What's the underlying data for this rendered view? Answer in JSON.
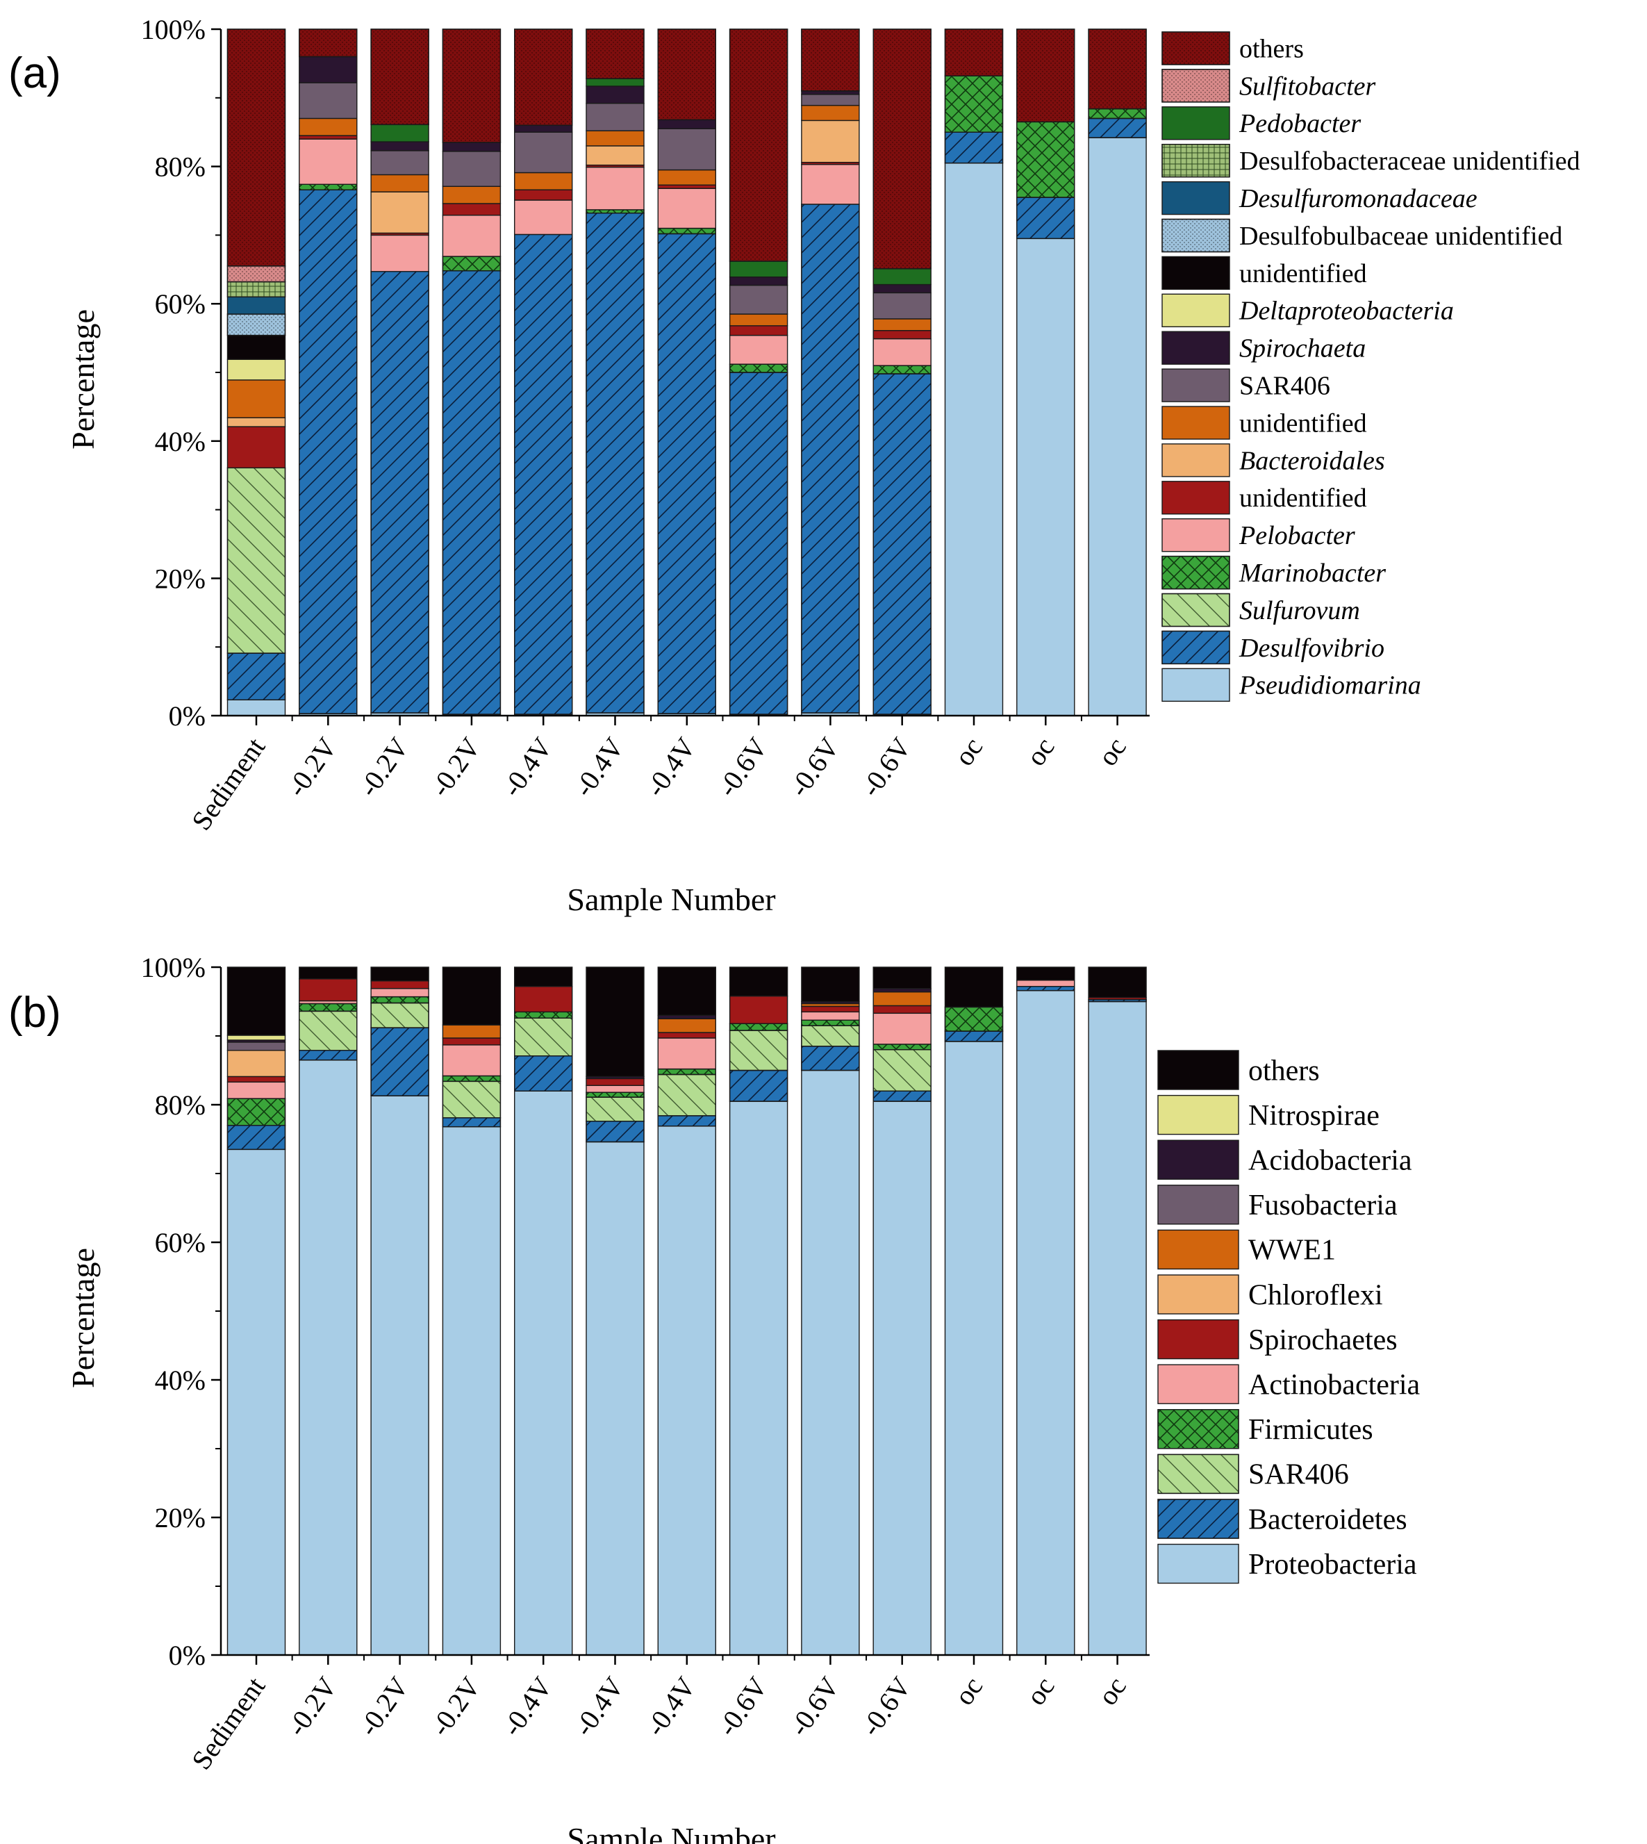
{
  "figure": {
    "panels": [
      {
        "label": "(a)"
      },
      {
        "label": "(b)"
      }
    ]
  },
  "chart_data": [
    {
      "type": "bar",
      "stacked": true,
      "panel": "(a)",
      "xlabel": "Sample Number",
      "ylabel": "Percentage",
      "ylim": [
        0,
        100
      ],
      "yticks": [
        "0%",
        "20%",
        "40%",
        "60%",
        "80%",
        "100%"
      ],
      "categories": [
        "Sediment",
        "-0.2V",
        "-0.2V",
        "-0.2V",
        "-0.4V",
        "-0.4V",
        "-0.4V",
        "-0.6V",
        "-0.6V",
        "-0.6V",
        "oc",
        "oc",
        "oc"
      ],
      "legend_position": "right",
      "series": [
        {
          "name": "Pseudidiomarina",
          "italic": true,
          "color": "#a8cde6",
          "pattern": "none",
          "values": [
            2.3,
            0.3,
            0.4,
            0.2,
            0.2,
            0.4,
            0.3,
            0.2,
            0.4,
            0.2,
            80.5,
            69.5,
            84.2
          ]
        },
        {
          "name": "Desulfovibrio",
          "italic": true,
          "color": "#2472b5",
          "pattern": "diag",
          "values": [
            6.8,
            76.3,
            64.3,
            64.6,
            69.9,
            72.8,
            69.9,
            49.8,
            74.1,
            49.6,
            4.5,
            6.0,
            2.8
          ]
        },
        {
          "name": "Sulfurovum",
          "italic": true,
          "color": "#b3dc91",
          "pattern": "diag-wide",
          "values": [
            27.0,
            0.0,
            0.0,
            0.0,
            0.0,
            0.0,
            0.0,
            0.0,
            0.0,
            0.0,
            0.0,
            0.0,
            0.0
          ]
        },
        {
          "name": "Marinobacter",
          "italic": true,
          "color": "#3aa53a",
          "pattern": "cross",
          "values": [
            0.0,
            0.8,
            0.0,
            2.1,
            0.0,
            0.5,
            0.8,
            1.2,
            0.0,
            1.2,
            8.2,
            11.0,
            1.4
          ]
        },
        {
          "name": "Pelobacter",
          "italic": true,
          "color": "#f4a0a0",
          "pattern": "none",
          "values": [
            0.0,
            6.6,
            5.3,
            6.0,
            5.0,
            6.2,
            5.8,
            4.2,
            5.8,
            3.9,
            0.0,
            0.0,
            0.0
          ]
        },
        {
          "name": "unidentified",
          "italic": false,
          "color": "#a01818",
          "pattern": "none",
          "values": [
            6.0,
            0.5,
            0.3,
            1.7,
            1.5,
            0.3,
            0.5,
            1.4,
            0.3,
            1.2,
            0.0,
            0.0,
            0.0
          ]
        },
        {
          "name": "Bacteroidales",
          "italic": true,
          "color": "#f0b070",
          "pattern": "none",
          "values": [
            1.3,
            0.0,
            6.0,
            0.0,
            0.0,
            2.8,
            0.0,
            0.0,
            6.1,
            0.0,
            0.0,
            0.0,
            0.0
          ]
        },
        {
          "name": "unidentified",
          "italic": false,
          "color": "#d2650d",
          "pattern": "none",
          "values": [
            5.5,
            2.5,
            2.5,
            2.5,
            2.5,
            2.2,
            2.2,
            1.7,
            2.2,
            1.7,
            0.0,
            0.0,
            0.0
          ]
        },
        {
          "name": "SAR406",
          "italic": false,
          "color": "#6e5c6e",
          "pattern": "none",
          "values": [
            0.0,
            5.2,
            3.5,
            5.1,
            5.9,
            4.0,
            6.0,
            4.2,
            1.6,
            3.8,
            0.0,
            0.0,
            0.0
          ]
        },
        {
          "name": "Spirochaeta",
          "italic": true,
          "color": "#2a1530",
          "pattern": "none",
          "values": [
            0.0,
            3.8,
            1.3,
            1.3,
            1.0,
            2.5,
            1.3,
            1.2,
            0.5,
            1.2,
            0.0,
            0.0,
            0.0
          ]
        },
        {
          "name": "Deltaproteobacteria",
          "italic": true,
          "color": "#e2e28a",
          "pattern": "none",
          "values": [
            3.0,
            0.0,
            0.0,
            0.0,
            0.0,
            0.0,
            0.0,
            0.0,
            0.0,
            0.0,
            0.0,
            0.0,
            0.0
          ]
        },
        {
          "name": "unidentified",
          "italic": false,
          "color": "#0b0507",
          "pattern": "none",
          "values": [
            3.5,
            0.0,
            0.0,
            0.0,
            0.0,
            0.0,
            0.0,
            0.0,
            0.0,
            0.0,
            0.0,
            0.0,
            0.0
          ]
        },
        {
          "name": "Desulfobulbaceae unidentified",
          "italic": false,
          "color": "#9ec2dc",
          "pattern": "dots-fine",
          "values": [
            3.1,
            0.0,
            0.0,
            0.0,
            0.0,
            0.0,
            0.0,
            0.0,
            0.0,
            0.0,
            0.0,
            0.0,
            0.0
          ]
        },
        {
          "name": "Desulfuromonadaceae",
          "italic": true,
          "color": "#15567e",
          "pattern": "none",
          "values": [
            2.5,
            0.0,
            0.0,
            0.0,
            0.0,
            0.0,
            0.0,
            0.0,
            0.0,
            0.0,
            0.0,
            0.0,
            0.0
          ]
        },
        {
          "name": "Desulfobacteraceae unidentified",
          "italic": false,
          "color": "#9fbf78",
          "pattern": "grid",
          "values": [
            2.2,
            0.0,
            0.0,
            0.0,
            0.0,
            0.0,
            0.0,
            0.0,
            0.0,
            0.0,
            0.0,
            0.0,
            0.0
          ]
        },
        {
          "name": "Pedobacter",
          "italic": true,
          "color": "#1e6e20",
          "pattern": "none",
          "values": [
            0.0,
            0.0,
            2.5,
            0.0,
            0.0,
            1.1,
            0.0,
            2.3,
            0.0,
            2.3,
            0.0,
            0.0,
            0.0
          ]
        },
        {
          "name": "Sulfitobacter",
          "italic": true,
          "color": "#d88a8a",
          "pattern": "dots-fine",
          "values": [
            2.3,
            0.0,
            0.0,
            0.0,
            0.0,
            0.0,
            0.0,
            0.0,
            0.0,
            0.0,
            0.0,
            0.0,
            0.0
          ]
        },
        {
          "name": "others",
          "italic": false,
          "color": "#7e0e0e",
          "pattern": "dots-fine",
          "values": [
            34.5,
            4.0,
            13.9,
            16.5,
            14.0,
            7.2,
            13.2,
            33.8,
            9.0,
            34.9,
            6.8,
            13.5,
            11.6
          ]
        }
      ]
    },
    {
      "type": "bar",
      "stacked": true,
      "panel": "(b)",
      "xlabel": "Sample Number",
      "ylabel": "Percentage",
      "ylim": [
        0,
        100
      ],
      "yticks": [
        "0%",
        "20%",
        "40%",
        "60%",
        "80%",
        "100%"
      ],
      "categories": [
        "Sediment",
        "-0.2V",
        "-0.2V",
        "-0.2V",
        "-0.4V",
        "-0.4V",
        "-0.4V",
        "-0.6V",
        "-0.6V",
        "-0.6V",
        "oc",
        "oc",
        "oc"
      ],
      "legend_position": "right",
      "series": [
        {
          "name": "Proteobacteria",
          "italic": false,
          "color": "#a8cde6",
          "pattern": "none",
          "values": [
            73.5,
            86.5,
            81.3,
            76.8,
            82.0,
            74.6,
            76.9,
            80.5,
            85.0,
            80.5,
            89.2,
            96.6,
            95.0
          ]
        },
        {
          "name": "Bacteroidetes",
          "italic": false,
          "color": "#2472b5",
          "pattern": "diag",
          "values": [
            3.5,
            1.4,
            9.9,
            1.3,
            5.1,
            3.0,
            1.5,
            4.5,
            3.5,
            1.5,
            1.5,
            0.6,
            0.3
          ]
        },
        {
          "name": "SAR406",
          "italic": false,
          "color": "#b3dc91",
          "pattern": "diag-wide",
          "values": [
            0.0,
            5.7,
            3.6,
            5.3,
            5.5,
            3.5,
            6.0,
            5.8,
            3.0,
            6.0,
            0.0,
            0.0,
            0.0
          ]
        },
        {
          "name": "Firmicutes",
          "italic": false,
          "color": "#3aa53a",
          "pattern": "cross",
          "values": [
            3.9,
            1.1,
            0.9,
            0.8,
            0.9,
            0.7,
            0.8,
            1.0,
            0.8,
            0.8,
            3.5,
            0.0,
            0.0
          ]
        },
        {
          "name": "Actinobacteria",
          "italic": false,
          "color": "#f4a0a0",
          "pattern": "none",
          "values": [
            2.4,
            0.4,
            1.2,
            4.5,
            0.0,
            1.0,
            4.5,
            0.0,
            1.2,
            4.5,
            0.0,
            0.9,
            0.0
          ]
        },
        {
          "name": "Spirochaetes",
          "italic": false,
          "color": "#a01818",
          "pattern": "none",
          "values": [
            0.8,
            3.2,
            1.1,
            1.0,
            3.7,
            1.0,
            0.8,
            4.0,
            0.8,
            1.1,
            0.0,
            0.0,
            0.3
          ]
        },
        {
          "name": "Chloroflexi",
          "italic": false,
          "color": "#f0b070",
          "pattern": "none",
          "values": [
            3.8,
            0.0,
            0.0,
            0.0,
            0.0,
            0.0,
            0.0,
            0.0,
            0.0,
            0.0,
            0.0,
            0.0,
            0.0
          ]
        },
        {
          "name": "WWE1",
          "italic": false,
          "color": "#d2650d",
          "pattern": "none",
          "values": [
            0.0,
            0.0,
            0.0,
            1.9,
            0.0,
            0.0,
            2.0,
            0.0,
            0.4,
            2.0,
            0.0,
            0.0,
            0.0
          ]
        },
        {
          "name": "Fusobacteria",
          "italic": false,
          "color": "#6e5c6e",
          "pattern": "none",
          "values": [
            1.2,
            0.0,
            0.0,
            0.0,
            0.0,
            0.0,
            0.0,
            0.0,
            0.0,
            0.0,
            0.0,
            0.0,
            0.0
          ]
        },
        {
          "name": "Acidobacteria",
          "italic": false,
          "color": "#2a1530",
          "pattern": "none",
          "values": [
            0.3,
            0.0,
            0.0,
            0.0,
            0.0,
            0.3,
            0.5,
            0.0,
            0.3,
            0.5,
            0.0,
            0.0,
            0.0
          ]
        },
        {
          "name": "Nitrospirae",
          "italic": false,
          "color": "#e2e28a",
          "pattern": "none",
          "values": [
            0.7,
            0.0,
            0.0,
            0.0,
            0.0,
            0.0,
            0.0,
            0.0,
            0.0,
            0.0,
            0.0,
            0.0,
            0.0
          ]
        },
        {
          "name": "others",
          "italic": false,
          "color": "#0b0507",
          "pattern": "none",
          "values": [
            9.9,
            1.7,
            2.0,
            8.4,
            2.8,
            15.9,
            7.0,
            4.2,
            5.0,
            3.1,
            5.8,
            1.9,
            4.4
          ]
        }
      ]
    }
  ]
}
